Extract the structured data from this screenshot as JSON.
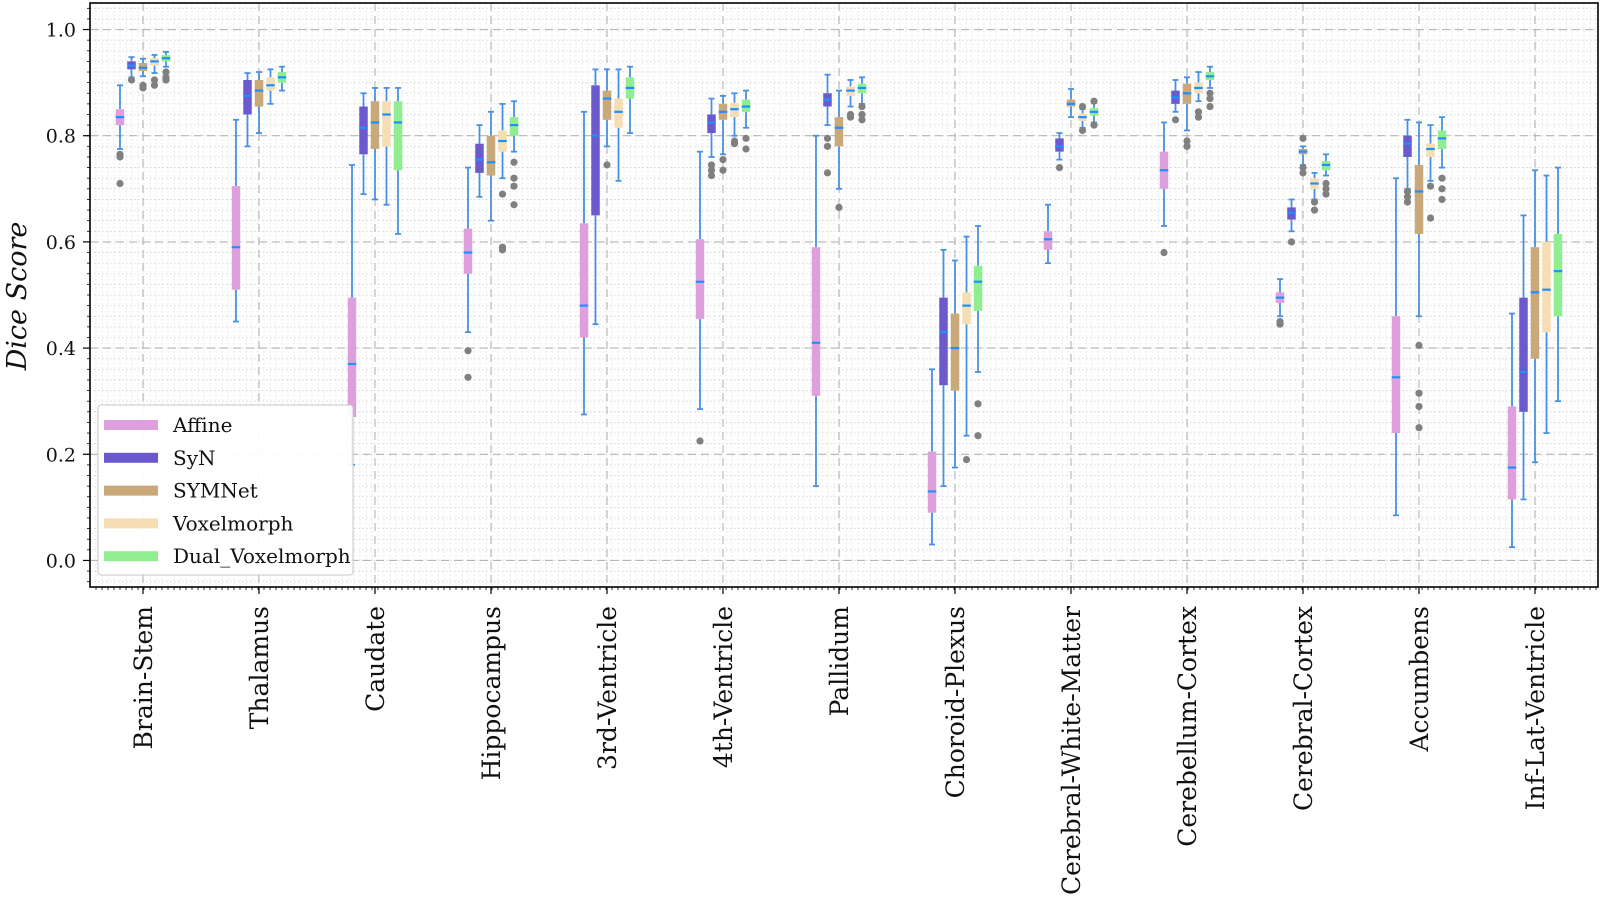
{
  "chart_data": {
    "type": "boxplot",
    "title": "",
    "xlabel": "",
    "ylabel": "Dice Score",
    "ylim": [
      -0.05,
      1.05
    ],
    "yticks": [
      0.0,
      0.2,
      0.4,
      0.6,
      0.8,
      1.0
    ],
    "ytick_labels": [
      "0.0",
      "0.2",
      "0.4",
      "0.6",
      "0.8",
      "1.0"
    ],
    "grid": true,
    "legend_position": "lower-left",
    "categories": [
      "Brain-Stem",
      "Thalamus",
      "Caudate",
      "Hippocampus",
      "3rd-Ventricle",
      "4th-Ventricle",
      "Pallidum",
      "Choroid-Plexus",
      "Cerebral-White-Matter",
      "Cerebellum-Cortex",
      "Cerebral-Cortex",
      "Accumbens",
      "Inf-Lat-Ventricle"
    ],
    "series": [
      {
        "name": "Affine",
        "color": "#dda0dd",
        "boxes": [
          {
            "whislo": 0.775,
            "q1": 0.82,
            "med": 0.835,
            "q3": 0.85,
            "whishi": 0.895,
            "fliers": [
              0.76,
              0.765,
              0.71
            ]
          },
          {
            "whislo": 0.45,
            "q1": 0.51,
            "med": 0.59,
            "q3": 0.705,
            "whishi": 0.83,
            "fliers": []
          },
          {
            "whislo": 0.18,
            "q1": 0.27,
            "med": 0.37,
            "q3": 0.495,
            "whishi": 0.745,
            "fliers": []
          },
          {
            "whislo": 0.43,
            "q1": 0.54,
            "med": 0.58,
            "q3": 0.625,
            "whishi": 0.74,
            "fliers": [
              0.395,
              0.345
            ]
          },
          {
            "whislo": 0.275,
            "q1": 0.42,
            "med": 0.48,
            "q3": 0.635,
            "whishi": 0.845,
            "fliers": []
          },
          {
            "whislo": 0.285,
            "q1": 0.455,
            "med": 0.525,
            "q3": 0.605,
            "whishi": 0.77,
            "fliers": [
              0.225
            ]
          },
          {
            "whislo": 0.14,
            "q1": 0.31,
            "med": 0.41,
            "q3": 0.59,
            "whishi": 0.8,
            "fliers": []
          },
          {
            "whislo": 0.03,
            "q1": 0.09,
            "med": 0.13,
            "q3": 0.205,
            "whishi": 0.36,
            "fliers": []
          },
          {
            "whislo": 0.56,
            "q1": 0.585,
            "med": 0.605,
            "q3": 0.62,
            "whishi": 0.67,
            "fliers": []
          },
          {
            "whislo": 0.63,
            "q1": 0.7,
            "med": 0.735,
            "q3": 0.77,
            "whishi": 0.825,
            "fliers": [
              0.58
            ]
          },
          {
            "whislo": 0.46,
            "q1": 0.485,
            "med": 0.495,
            "q3": 0.505,
            "whishi": 0.53,
            "fliers": [
              0.45,
              0.445
            ]
          },
          {
            "whislo": 0.085,
            "q1": 0.24,
            "med": 0.345,
            "q3": 0.46,
            "whishi": 0.72,
            "fliers": []
          },
          {
            "whislo": 0.025,
            "q1": 0.115,
            "med": 0.175,
            "q3": 0.29,
            "whishi": 0.465,
            "fliers": []
          }
        ]
      },
      {
        "name": "SyN",
        "color": "#6a5acd",
        "boxes": [
          {
            "whislo": 0.91,
            "q1": 0.925,
            "med": 0.932,
            "q3": 0.94,
            "whishi": 0.948,
            "fliers": [
              0.905
            ]
          },
          {
            "whislo": 0.78,
            "q1": 0.84,
            "med": 0.875,
            "q3": 0.905,
            "whishi": 0.918,
            "fliers": []
          },
          {
            "whislo": 0.69,
            "q1": 0.765,
            "med": 0.815,
            "q3": 0.855,
            "whishi": 0.88,
            "fliers": []
          },
          {
            "whislo": 0.685,
            "q1": 0.73,
            "med": 0.755,
            "q3": 0.785,
            "whishi": 0.82,
            "fliers": []
          },
          {
            "whislo": 0.445,
            "q1": 0.65,
            "med": 0.8,
            "q3": 0.895,
            "whishi": 0.925,
            "fliers": []
          },
          {
            "whislo": 0.76,
            "q1": 0.805,
            "med": 0.825,
            "q3": 0.84,
            "whishi": 0.87,
            "fliers": [
              0.745,
              0.735,
              0.725
            ]
          },
          {
            "whislo": 0.82,
            "q1": 0.855,
            "med": 0.868,
            "q3": 0.88,
            "whishi": 0.915,
            "fliers": [
              0.795,
              0.78,
              0.73
            ]
          },
          {
            "whislo": 0.14,
            "q1": 0.33,
            "med": 0.43,
            "q3": 0.495,
            "whishi": 0.585,
            "fliers": []
          },
          {
            "whislo": 0.755,
            "q1": 0.77,
            "med": 0.78,
            "q3": 0.795,
            "whishi": 0.805,
            "fliers": [
              0.74
            ]
          },
          {
            "whislo": 0.845,
            "q1": 0.86,
            "med": 0.872,
            "q3": 0.885,
            "whishi": 0.905,
            "fliers": [
              0.83
            ]
          },
          {
            "whislo": 0.62,
            "q1": 0.642,
            "med": 0.655,
            "q3": 0.665,
            "whishi": 0.68,
            "fliers": [
              0.6
            ]
          },
          {
            "whislo": 0.7,
            "q1": 0.76,
            "med": 0.785,
            "q3": 0.8,
            "whishi": 0.83,
            "fliers": [
              0.695,
              0.685,
              0.675
            ]
          },
          {
            "whislo": 0.115,
            "q1": 0.28,
            "med": 0.355,
            "q3": 0.495,
            "whishi": 0.65,
            "fliers": []
          }
        ]
      },
      {
        "name": "SYMNet",
        "color": "#c9a87a",
        "boxes": [
          {
            "whislo": 0.912,
            "q1": 0.922,
            "med": 0.928,
            "q3": 0.937,
            "whishi": 0.945,
            "fliers": [
              0.89,
              0.895
            ]
          },
          {
            "whislo": 0.805,
            "q1": 0.855,
            "med": 0.885,
            "q3": 0.905,
            "whishi": 0.92,
            "fliers": []
          },
          {
            "whislo": 0.68,
            "q1": 0.775,
            "med": 0.825,
            "q3": 0.865,
            "whishi": 0.89,
            "fliers": []
          },
          {
            "whislo": 0.64,
            "q1": 0.725,
            "med": 0.75,
            "q3": 0.8,
            "whishi": 0.845,
            "fliers": []
          },
          {
            "whislo": 0.78,
            "q1": 0.83,
            "med": 0.87,
            "q3": 0.885,
            "whishi": 0.925,
            "fliers": [
              0.745
            ]
          },
          {
            "whislo": 0.765,
            "q1": 0.83,
            "med": 0.845,
            "q3": 0.86,
            "whishi": 0.875,
            "fliers": [
              0.755,
              0.735
            ]
          },
          {
            "whislo": 0.7,
            "q1": 0.78,
            "med": 0.815,
            "q3": 0.835,
            "whishi": 0.885,
            "fliers": [
              0.665
            ]
          },
          {
            "whislo": 0.175,
            "q1": 0.32,
            "med": 0.4,
            "q3": 0.465,
            "whishi": 0.565,
            "fliers": []
          },
          {
            "whislo": 0.835,
            "q1": 0.855,
            "med": 0.86,
            "q3": 0.868,
            "whishi": 0.888,
            "fliers": []
          },
          {
            "whislo": 0.81,
            "q1": 0.86,
            "med": 0.88,
            "q3": 0.898,
            "whishi": 0.91,
            "fliers": [
              0.79,
              0.78
            ]
          },
          {
            "whislo": 0.745,
            "q1": 0.765,
            "med": 0.77,
            "q3": 0.775,
            "whishi": 0.78,
            "fliers": [
              0.795,
              0.74,
              0.73
            ]
          },
          {
            "whislo": 0.46,
            "q1": 0.615,
            "med": 0.695,
            "q3": 0.745,
            "whishi": 0.825,
            "fliers": [
              0.405,
              0.315,
              0.29,
              0.25
            ]
          },
          {
            "whislo": 0.185,
            "q1": 0.38,
            "med": 0.505,
            "q3": 0.59,
            "whishi": 0.735,
            "fliers": []
          }
        ]
      },
      {
        "name": "Voxelmorph",
        "color": "#f5deb3",
        "boxes": [
          {
            "whislo": 0.918,
            "q1": 0.932,
            "med": 0.94,
            "q3": 0.946,
            "whishi": 0.952,
            "fliers": [
              0.905,
              0.895
            ]
          },
          {
            "whislo": 0.86,
            "q1": 0.885,
            "med": 0.895,
            "q3": 0.91,
            "whishi": 0.925,
            "fliers": []
          },
          {
            "whislo": 0.67,
            "q1": 0.78,
            "med": 0.84,
            "q3": 0.865,
            "whishi": 0.89,
            "fliers": []
          },
          {
            "whislo": 0.72,
            "q1": 0.77,
            "med": 0.79,
            "q3": 0.81,
            "whishi": 0.86,
            "fliers": [
              0.69,
              0.59,
              0.585
            ]
          },
          {
            "whislo": 0.715,
            "q1": 0.815,
            "med": 0.845,
            "q3": 0.87,
            "whishi": 0.925,
            "fliers": []
          },
          {
            "whislo": 0.8,
            "q1": 0.835,
            "med": 0.85,
            "q3": 0.862,
            "whishi": 0.88,
            "fliers": [
              0.79,
              0.785
            ]
          },
          {
            "whislo": 0.855,
            "q1": 0.875,
            "med": 0.885,
            "q3": 0.893,
            "whishi": 0.905,
            "fliers": [
              0.84,
              0.835
            ]
          },
          {
            "whislo": 0.235,
            "q1": 0.445,
            "med": 0.48,
            "q3": 0.505,
            "whishi": 0.61,
            "fliers": [
              0.19
            ]
          },
          {
            "whislo": 0.815,
            "q1": 0.828,
            "med": 0.835,
            "q3": 0.842,
            "whishi": 0.85,
            "fliers": [
              0.855,
              0.81
            ]
          },
          {
            "whislo": 0.865,
            "q1": 0.88,
            "med": 0.89,
            "q3": 0.9,
            "whishi": 0.92,
            "fliers": [
              0.845,
              0.835
            ]
          },
          {
            "whislo": 0.68,
            "q1": 0.7,
            "med": 0.71,
            "q3": 0.72,
            "whishi": 0.73,
            "fliers": [
              0.675,
              0.66
            ]
          },
          {
            "whislo": 0.715,
            "q1": 0.76,
            "med": 0.775,
            "q3": 0.785,
            "whishi": 0.82,
            "fliers": [
              0.705,
              0.645
            ]
          },
          {
            "whislo": 0.24,
            "q1": 0.43,
            "med": 0.51,
            "q3": 0.6,
            "whishi": 0.725,
            "fliers": []
          }
        ]
      },
      {
        "name": "Dual_Voxelmorph",
        "color": "#90ee90",
        "boxes": [
          {
            "whislo": 0.93,
            "q1": 0.94,
            "med": 0.946,
            "q3": 0.952,
            "whishi": 0.958,
            "fliers": [
              0.92,
              0.91,
              0.905
            ]
          },
          {
            "whislo": 0.885,
            "q1": 0.9,
            "med": 0.91,
            "q3": 0.92,
            "whishi": 0.93,
            "fliers": []
          },
          {
            "whislo": 0.615,
            "q1": 0.735,
            "med": 0.825,
            "q3": 0.865,
            "whishi": 0.89,
            "fliers": []
          },
          {
            "whislo": 0.77,
            "q1": 0.8,
            "med": 0.82,
            "q3": 0.835,
            "whishi": 0.865,
            "fliers": [
              0.75,
              0.72,
              0.705,
              0.67
            ]
          },
          {
            "whislo": 0.805,
            "q1": 0.87,
            "med": 0.89,
            "q3": 0.91,
            "whishi": 0.93,
            "fliers": []
          },
          {
            "whislo": 0.815,
            "q1": 0.845,
            "med": 0.855,
            "q3": 0.868,
            "whishi": 0.885,
            "fliers": [
              0.795,
              0.775
            ]
          },
          {
            "whislo": 0.86,
            "q1": 0.88,
            "med": 0.89,
            "q3": 0.898,
            "whishi": 0.91,
            "fliers": [
              0.855,
              0.84,
              0.83
            ]
          },
          {
            "whislo": 0.355,
            "q1": 0.47,
            "med": 0.525,
            "q3": 0.555,
            "whishi": 0.63,
            "fliers": [
              0.295,
              0.235
            ]
          },
          {
            "whislo": 0.825,
            "q1": 0.838,
            "med": 0.845,
            "q3": 0.852,
            "whishi": 0.862,
            "fliers": [
              0.865,
              0.82
            ]
          },
          {
            "whislo": 0.89,
            "q1": 0.905,
            "med": 0.912,
            "q3": 0.92,
            "whishi": 0.93,
            "fliers": [
              0.88,
              0.87,
              0.855
            ]
          },
          {
            "whislo": 0.725,
            "q1": 0.735,
            "med": 0.745,
            "q3": 0.752,
            "whishi": 0.765,
            "fliers": [
              0.71,
              0.7,
              0.69
            ]
          },
          {
            "whislo": 0.74,
            "q1": 0.775,
            "med": 0.795,
            "q3": 0.81,
            "whishi": 0.835,
            "fliers": [
              0.72,
              0.7,
              0.68
            ]
          },
          {
            "whislo": 0.3,
            "q1": 0.46,
            "med": 0.545,
            "q3": 0.615,
            "whishi": 0.74,
            "fliers": []
          }
        ]
      }
    ],
    "colors": {
      "median": "#1e90ff",
      "whisker": "#4a90e2",
      "flier": "#808080"
    }
  }
}
